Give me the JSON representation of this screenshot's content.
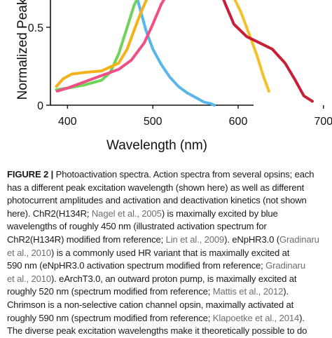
{
  "figure": {
    "chart_data": {
      "type": "line",
      "xlabel": "Wavelength (nm)",
      "ylabel": "Normalized Peak",
      "xlim": [
        380,
        710
      ],
      "ylim": [
        0,
        0.72
      ],
      "x_ticks": [
        "400",
        "500",
        "600",
        "700"
      ],
      "x_tick_values": [
        400,
        500,
        600,
        700
      ],
      "y_ticks": [
        "0",
        "0.5"
      ],
      "y_tick_values": [
        0,
        0.5
      ],
      "grid": false,
      "series": [
        {
          "color": "#58b7e8",
          "x": [
            480,
            485,
            492,
            500,
            510,
            520,
            530,
            540,
            550,
            560,
            568,
            572
          ],
          "y": [
            0.72,
            0.62,
            0.48,
            0.36,
            0.26,
            0.18,
            0.12,
            0.08,
            0.05,
            0.02,
            0.01,
            0.0
          ]
        },
        {
          "color": "#6fd35a",
          "x": [
            387,
            400,
            420,
            440,
            450,
            460,
            470,
            478,
            485
          ],
          "y": [
            0.1,
            0.11,
            0.13,
            0.16,
            0.21,
            0.33,
            0.5,
            0.64,
            0.72
          ]
        },
        {
          "color": "#f3b21a",
          "x": [
            387,
            395,
            405,
            420,
            440,
            460,
            470,
            478,
            485,
            492,
            498
          ],
          "y": [
            0.12,
            0.17,
            0.2,
            0.21,
            0.22,
            0.27,
            0.36,
            0.48,
            0.58,
            0.67,
            0.72
          ]
        },
        {
          "color": "#ee4f86",
          "x": [
            388,
            400,
            420,
            440,
            460,
            475,
            490,
            500,
            510,
            518
          ],
          "y": [
            0.09,
            0.11,
            0.15,
            0.19,
            0.23,
            0.29,
            0.4,
            0.52,
            0.65,
            0.72
          ]
        },
        {
          "color": "#f5c12a",
          "x": [
            590,
            595,
            603,
            612,
            622,
            630,
            636
          ],
          "y": [
            0.72,
            0.69,
            0.6,
            0.47,
            0.32,
            0.18,
            0.09
          ]
        },
        {
          "color": "#c81e38",
          "x": [
            580,
            585,
            595,
            610,
            625,
            640,
            655,
            667,
            677,
            687
          ],
          "y": [
            0.72,
            0.65,
            0.52,
            0.44,
            0.4,
            0.36,
            0.27,
            0.16,
            0.06,
            0.025
          ]
        }
      ]
    }
  },
  "caption": {
    "lines": [
      [
        {
          "text": "FIGURE 2 |",
          "style": "label"
        },
        {
          "text": " Photoactivation spectra. Action spectra from several opsins; each"
        }
      ],
      [
        {
          "text": "has a different peak excitation wavelength (shown here) as well as different"
        }
      ],
      [
        {
          "text": "photocurrent amplitudes and activation and deactivation kinetics (not shown"
        }
      ],
      [
        {
          "text": "here). ChR2(H134R; "
        },
        {
          "text": "Nagel et al., 2005",
          "style": "ref"
        },
        {
          "text": ") is maximally excited by blue"
        }
      ],
      [
        {
          "text": "wavelengths of roughly 450 nm (illustrated activation spectrum for"
        }
      ],
      [
        {
          "text": "ChR2(H134R) modified from reference; "
        },
        {
          "text": "Lin et al., 2009",
          "style": "ref"
        },
        {
          "text": "). eNpHR3.0 ("
        },
        {
          "text": "Gradinaru",
          "style": "ref"
        }
      ],
      [
        {
          "text": "et al., 2010",
          "style": "ref"
        },
        {
          "text": ") is a commonly used HR variant that is maximally excited at"
        }
      ],
      [
        {
          "text": "590 nm (eNpHR3.0 activation spectrum modified from reference; "
        },
        {
          "text": "Gradinaru",
          "style": "ref"
        }
      ],
      [
        {
          "text": "et al., 2010",
          "style": "ref"
        },
        {
          "text": "). eArchT3.0, an outward proton pump, is maximally excited at"
        }
      ],
      [
        {
          "text": "roughly 520 nm (spectrum modified from reference; "
        },
        {
          "text": "Mattis et al., 2012",
          "style": "ref"
        },
        {
          "text": ")."
        }
      ],
      [
        {
          "text": "Chrimson is a non-selective cation channel opsin, maximally activated at"
        }
      ],
      [
        {
          "text": "roughly 590 nm (spectrum modified from reference; "
        },
        {
          "text": "Klapoetke et al., 2014",
          "style": "ref"
        },
        {
          "text": ")."
        }
      ],
      [
        {
          "text": "The diverse peak excitation wavelengths make it theoretically possible to do"
        }
      ]
    ]
  }
}
